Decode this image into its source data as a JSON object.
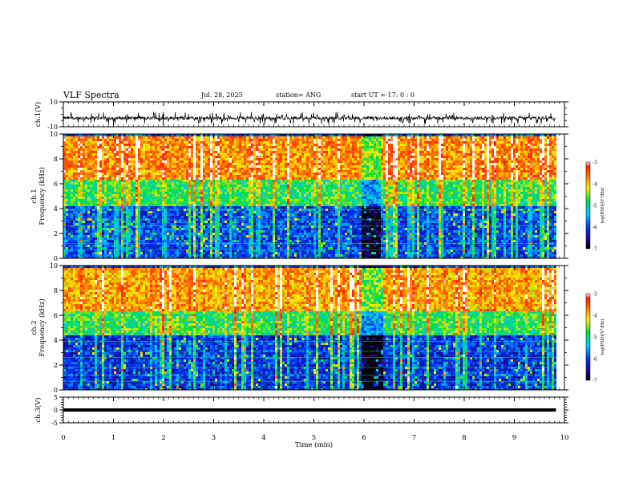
{
  "header": {
    "title": "VLF Spectra",
    "date": "Jul. 28, 2025",
    "station": "station= ANG",
    "start_ut": "start UT =  17: 0  : 0"
  },
  "chart_data": [
    {
      "type": "line",
      "title": "",
      "ylabel": "ch.1(V)",
      "ylim": [
        -10,
        10
      ],
      "y_ticks": [
        "10",
        "-10"
      ],
      "xlim": [
        0,
        10
      ],
      "series": [
        {
          "description_values": "continuous noisy waveform centered near -3 V with spikes between about -8 and +2 V",
          "baseline": -3,
          "min": -8,
          "max": 2
        }
      ]
    },
    {
      "type": "heatmap",
      "title": "",
      "ylabel": "ch.1 Frequency (kHz)",
      "ylim": [
        0,
        10
      ],
      "y_ticks": [
        "0",
        "2",
        "4",
        "6",
        "8",
        "10"
      ],
      "xlim": [
        0,
        10
      ],
      "data_end_min": 9.83,
      "colorbar": {
        "label": "log(PSD)(V²/Hz)",
        "range": [
          -7,
          -3
        ],
        "ticks": [
          "-3",
          "-4",
          "-5",
          "-6",
          "-7"
        ]
      },
      "bands": [
        {
          "from_khz": 0,
          "to_khz": 4.3,
          "log_psd": -6.0
        },
        {
          "from_khz": 4.3,
          "to_khz": 6.5,
          "log_psd": -4.8
        },
        {
          "from_khz": 6.5,
          "to_khz": 10,
          "log_psd": -3.8
        }
      ],
      "quiet_interval_min": [
        5.95,
        6.3
      ]
    },
    {
      "type": "heatmap",
      "title": "",
      "ylabel": "ch.2 Frequency (kHz)",
      "ylim": [
        0,
        10
      ],
      "y_ticks": [
        "0",
        "2",
        "4",
        "6",
        "8",
        "10"
      ],
      "xlim": [
        0,
        10
      ],
      "data_end_min": 9.83,
      "colorbar": {
        "label": "log(PSD)(V²/Hz)",
        "range": [
          -7,
          -3
        ],
        "ticks": [
          "-3",
          "-4",
          "-5",
          "-6",
          "-7"
        ]
      },
      "bands": [
        {
          "from_khz": 0,
          "to_khz": 4.5,
          "log_psd": -6.1
        },
        {
          "from_khz": 4.5,
          "to_khz": 6.5,
          "log_psd": -4.8
        },
        {
          "from_khz": 6.5,
          "to_khz": 10,
          "log_psd": -3.9
        }
      ],
      "quiet_interval_min": [
        5.95,
        6.35
      ]
    },
    {
      "type": "line",
      "title": "",
      "ylabel": "ch.3(V)",
      "ylim": [
        -5,
        5
      ],
      "y_ticks": [
        "5",
        "0",
        "-5"
      ],
      "xlim": [
        0,
        10
      ],
      "series": [
        {
          "description_values": "flat thick trace",
          "value": 0
        }
      ]
    }
  ],
  "x_axis": {
    "label": "Time (min)",
    "ticks": [
      "0",
      "1",
      "2",
      "3",
      "4",
      "5",
      "6",
      "7",
      "8",
      "9",
      "10"
    ]
  }
}
